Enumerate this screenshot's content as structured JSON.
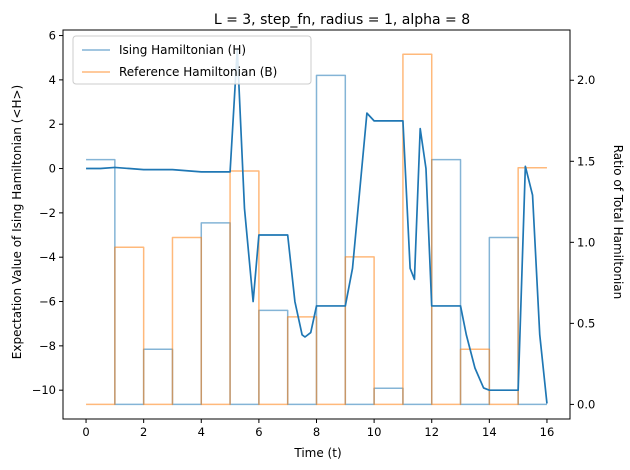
{
  "chart_data": {
    "type": "line",
    "title": "L = 3, step_fn, radius = 1, alpha = 8",
    "xlabel": "Time (t)",
    "ylabel_left": "Expectation Value of Ising Hamiltonian (<H>)",
    "ylabel_right": "Ratio of Total Hamiltonian",
    "xlim": [
      -0.8,
      16.8
    ],
    "ylim_left": [
      -11.3,
      6.25
    ],
    "ylim_right": [
      -0.09,
      2.31
    ],
    "x_ticks": [
      0,
      2,
      4,
      6,
      8,
      10,
      12,
      14,
      16
    ],
    "y_ticks_left": [
      -10,
      -8,
      -6,
      -4,
      -2,
      0,
      2,
      4,
      6
    ],
    "y_ticks_right": [
      0.0,
      0.5,
      1.0,
      1.5,
      2.0
    ],
    "grid": false,
    "legend_position": "top-left",
    "series": [
      {
        "name": "Ising Hamiltonian (H)",
        "axis": "right",
        "style": "step",
        "color": "#1f77b4",
        "opacity": 0.55,
        "x": [
          0,
          1,
          1,
          2,
          2,
          3,
          3,
          4,
          4,
          5,
          5,
          6,
          6,
          7,
          7,
          8,
          8,
          9,
          9,
          10,
          10,
          11,
          11,
          12,
          12,
          13,
          13,
          14,
          14,
          15,
          15,
          16,
          16
        ],
        "y": [
          1.51,
          1.51,
          0,
          0,
          0.34,
          0.34,
          0,
          0,
          1.12,
          1.12,
          0,
          0,
          0.58,
          0.58,
          0,
          0,
          2.03,
          2.03,
          0,
          0,
          0.1,
          0.1,
          0,
          0,
          1.51,
          1.51,
          0,
          0,
          1.03,
          1.03,
          0,
          0,
          0
        ]
      },
      {
        "name": "Reference Hamiltonian (B)",
        "axis": "right",
        "style": "step",
        "color": "#ff7f0e",
        "opacity": 0.55,
        "x": [
          0,
          1,
          1,
          2,
          2,
          3,
          3,
          4,
          4,
          5,
          5,
          6,
          6,
          7,
          7,
          8,
          8,
          9,
          9,
          10,
          10,
          11,
          11,
          12,
          12,
          13,
          13,
          14,
          14,
          15,
          15,
          16
        ],
        "y": [
          0,
          0,
          0.97,
          0.97,
          0,
          0,
          1.03,
          1.03,
          0,
          0,
          1.44,
          1.44,
          0,
          0,
          0.54,
          0.54,
          0,
          0,
          0.91,
          0.91,
          0,
          0,
          2.16,
          2.16,
          0,
          0,
          0.34,
          0.34,
          0,
          0,
          1.46,
          1.46
        ]
      },
      {
        "axis": "left",
        "style": "line",
        "color": "#1f77b4",
        "opacity": 1,
        "x": [
          0,
          0.5,
          1,
          1.5,
          2,
          2.5,
          3,
          3.5,
          4,
          4.5,
          5,
          5.25,
          5.5,
          5.8,
          6,
          6.5,
          7,
          7.25,
          7.5,
          7.6,
          7.8,
          8,
          8.5,
          9,
          9.25,
          9.5,
          9.75,
          10,
          10.5,
          11,
          11.25,
          11.4,
          11.6,
          11.8,
          12,
          12.5,
          13,
          13.2,
          13.5,
          13.8,
          14,
          14.5,
          15,
          15.25,
          15.5,
          15.75,
          16
        ],
        "y": [
          0.0,
          0.0,
          0.05,
          0.0,
          -0.05,
          -0.05,
          -0.05,
          -0.1,
          -0.15,
          -0.15,
          -0.15,
          5.4,
          -1.8,
          -6.0,
          -3.0,
          -3.0,
          -3.0,
          -6.0,
          -7.5,
          -7.6,
          -7.4,
          -6.2,
          -6.2,
          -6.2,
          -4.5,
          -1.0,
          2.5,
          2.15,
          2.15,
          2.15,
          -4.5,
          -5.0,
          1.8,
          0.0,
          -6.2,
          -6.2,
          -6.2,
          -7.5,
          -9.0,
          -9.9,
          -10.0,
          -10.0,
          -10.0,
          0.1,
          -1.2,
          -7.5,
          -10.6
        ]
      }
    ]
  }
}
